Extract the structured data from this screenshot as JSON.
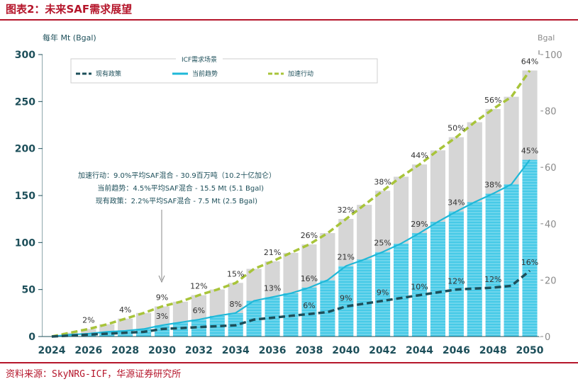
{
  "figure_title": "图表2：未来SAF需求展望",
  "source": "资料来源：SkyNRG-ICF，华源证券研究所",
  "colors": {
    "title_red": "#b5162b",
    "accelerate": "#a8c43a",
    "current": "#1fb8d8",
    "policy": "#1d4f5a",
    "gray_bar": "#d6d6d6",
    "cyan_bar": "#2ec8ea"
  },
  "chart_data": {
    "type": "bar",
    "ylabel": "每年 Mt (Bgal)",
    "y2label": "Bgal",
    "ylim": [
      0,
      300
    ],
    "y2lim": [
      0,
      100
    ],
    "yticks": [
      0,
      50,
      100,
      150,
      200,
      250,
      300
    ],
    "y2ticks": [
      0,
      20,
      40,
      60,
      80,
      100
    ],
    "xticks": [
      "2024",
      "2026",
      "2028",
      "2030",
      "2032",
      "2034",
      "2036",
      "2038",
      "2040",
      "2042",
      "2044",
      "2046",
      "2048",
      "2050"
    ],
    "legend": {
      "title": "ICF需求场景",
      "position": "top-center",
      "entries": [
        "现有政策",
        "当前趋势",
        "加速行动"
      ]
    },
    "annotation": [
      "加速行动：9.0%平均SAF混合 - 30.9百万吨（10.2十亿加仑）",
      "当前趋势：4.5%平均SAF混合 - 15.5 Mt (5.1 Bgal)",
      "现有政策：2.2%平均SAF混合 - 7.5 Mt (2.5 Bgal)"
    ],
    "series": [
      {
        "name": "加速行动",
        "x": [
          2024,
          2025,
          2026,
          2027,
          2028,
          2029,
          2030,
          2031,
          2032,
          2033,
          2034,
          2035,
          2036,
          2037,
          2038,
          2039,
          2040,
          2041,
          2042,
          2043,
          2044,
          2045,
          2046,
          2047,
          2048,
          2049,
          2050
        ],
        "values": [
          0,
          4,
          8,
          13,
          19,
          25,
          32,
          37,
          44,
          50,
          57,
          72,
          80,
          89,
          98,
          110,
          125,
          140,
          155,
          170,
          183,
          198,
          212,
          228,
          242,
          255,
          283
        ],
        "labels": {
          "2026": "2%",
          "2028": "4%",
          "2030": "9%",
          "2032": "12%",
          "2034": "15%",
          "2036": "21%",
          "2038": "26%",
          "2040": "32%",
          "2042": "38%",
          "2044": "44%",
          "2046": "50%",
          "2048": "56%",
          "2050": "64%"
        }
      },
      {
        "name": "当前趋势",
        "x": [
          2024,
          2025,
          2026,
          2027,
          2028,
          2029,
          2030,
          2031,
          2032,
          2033,
          2034,
          2035,
          2036,
          2037,
          2038,
          2039,
          2040,
          2041,
          2042,
          2043,
          2044,
          2045,
          2046,
          2047,
          2048,
          2049,
          2050
        ],
        "values": [
          0,
          2,
          3,
          5,
          6,
          8,
          12,
          15,
          18,
          22,
          25,
          38,
          42,
          46,
          52,
          60,
          75,
          82,
          90,
          99,
          110,
          122,
          133,
          143,
          152,
          162,
          188
        ],
        "labels": {
          "2030": "3%",
          "2032": "6%",
          "2034": "8%",
          "2036": "13%",
          "2038": "16%",
          "2040": "21%",
          "2042": "25%",
          "2044": "29%",
          "2046": "34%",
          "2048": "38%",
          "2050": "45%"
        }
      },
      {
        "name": "现有政策",
        "x": [
          2024,
          2025,
          2026,
          2027,
          2028,
          2029,
          2030,
          2031,
          2032,
          2033,
          2034,
          2035,
          2036,
          2037,
          2038,
          2039,
          2040,
          2041,
          2042,
          2043,
          2044,
          2045,
          2046,
          2047,
          2048,
          2049,
          2050
        ],
        "values": [
          0,
          1,
          2,
          3,
          4,
          5,
          8,
          9,
          10,
          11,
          12,
          18,
          20,
          22,
          24,
          26,
          32,
          35,
          38,
          41,
          44,
          47,
          50,
          51,
          52,
          54,
          70
        ],
        "labels": {
          "2038": "6%",
          "2040": "9%",
          "2042": "9%",
          "2044": "10%",
          "2046": "12%",
          "2048": "12%",
          "2050": "16%"
        }
      }
    ]
  }
}
